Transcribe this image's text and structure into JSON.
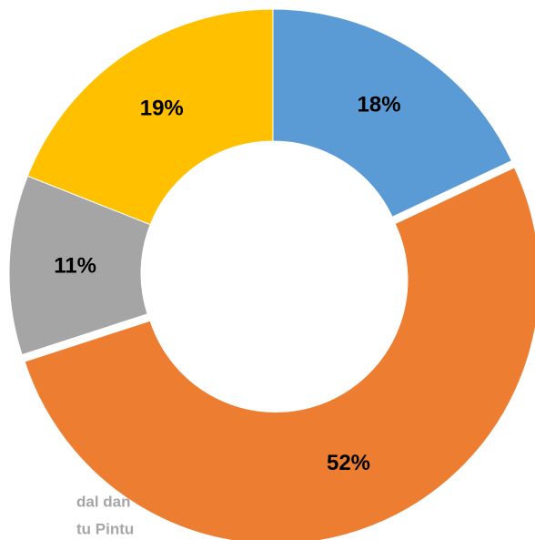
{
  "chart_data": {
    "type": "donut",
    "categories": [
      null,
      null,
      null,
      null
    ],
    "values": [
      18,
      52,
      11,
      19
    ],
    "value_labels": [
      "18%",
      "52%",
      "11%",
      "19%"
    ],
    "colors": [
      "#5b9bd5",
      "#ed7d31",
      "#a5a5a5",
      "#ffc000"
    ],
    "exploded": [
      false,
      true,
      false,
      false
    ],
    "annotations": [
      "dal dan",
      "tu Pintu"
    ]
  }
}
